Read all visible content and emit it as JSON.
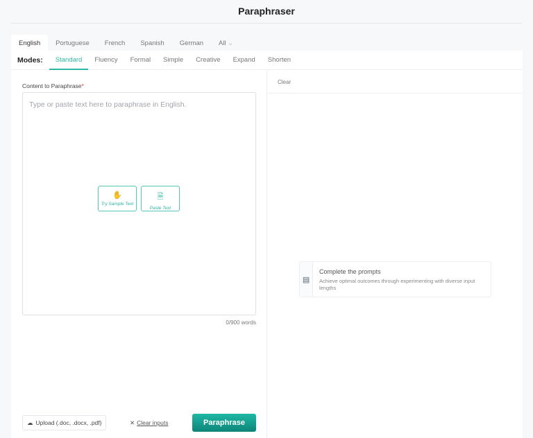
{
  "header": {
    "title": "Paraphraser"
  },
  "languages": [
    "English",
    "Portuguese",
    "French",
    "Spanish",
    "German"
  ],
  "languages_all": "All",
  "modes": {
    "label": "Modes:",
    "items": [
      "Standard",
      "Fluency",
      "Formal",
      "Simple",
      "Creative",
      "Expand",
      "Shorten"
    ],
    "active": "Standard"
  },
  "input": {
    "label": "Content to Paraphrase",
    "required_mark": "*",
    "placeholder": "Type or paste text here to paraphrase in English.",
    "value": "",
    "try_sample": "Try Sample Text",
    "paste_text": "Paste Text",
    "word_count": "0/900 words"
  },
  "footer": {
    "upload": "Upload (.doc, .docx, .pdf)",
    "clear_inputs": "Clear inputs",
    "paraphrase": "Paraphrase"
  },
  "output": {
    "clear": "Clear",
    "tip_title": "Complete the prompts",
    "tip_desc": "Achieve optimal outcomes through experimenting with diverse input lengths"
  },
  "colors": {
    "accent": "#2bb5a3",
    "button": "#0d8478"
  }
}
